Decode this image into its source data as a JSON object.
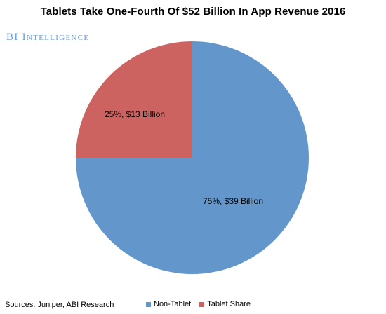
{
  "title": "Tablets Take One-Fourth Of $52 Billion In App Revenue 2016",
  "brand": "BI Intelligence",
  "source": "Sources: Juniper, ABI Research",
  "colors": {
    "non_tablet": "#6397cc",
    "tablet": "#cd6360"
  },
  "chart_data": {
    "type": "pie",
    "title": "Tablets Take One-Fourth Of $52 Billion In App Revenue 2016",
    "slices": [
      {
        "name": "Non-Tablet",
        "value": 75,
        "label": "75%, $39 Billion",
        "color": "#6397cc"
      },
      {
        "name": "Tablet Share",
        "value": 25,
        "label": "25%, $13 Billion",
        "color": "#cd6360"
      }
    ],
    "legend_position": "bottom"
  }
}
